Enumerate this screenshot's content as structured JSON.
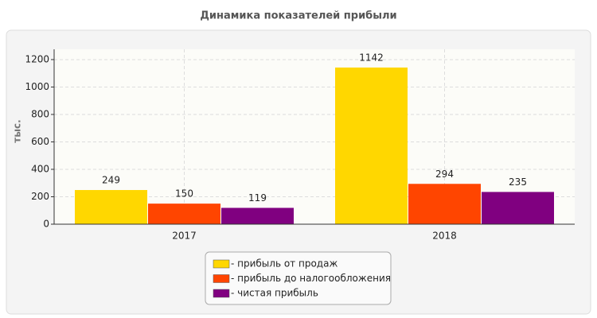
{
  "chart_data": {
    "type": "bar",
    "title": "Динамика показателей прибыли",
    "y_label": "тыс.",
    "categories": [
      "2017",
      "2018"
    ],
    "series": [
      {
        "name": "- прибыль от продаж",
        "color": "#ffd700",
        "values": [
          249,
          1142
        ]
      },
      {
        "name": "- прибыль до налогообложения",
        "color": "#ff4500",
        "values": [
          150,
          294
        ]
      },
      {
        "name": "- чистая прибыль",
        "color": "#800080",
        "values": [
          119,
          235
        ]
      }
    ],
    "ylim": [
      0,
      1275
    ],
    "yticks": [
      0,
      200,
      400,
      600,
      800,
      1000,
      1200
    ],
    "grid": true,
    "legend": "bottom"
  }
}
